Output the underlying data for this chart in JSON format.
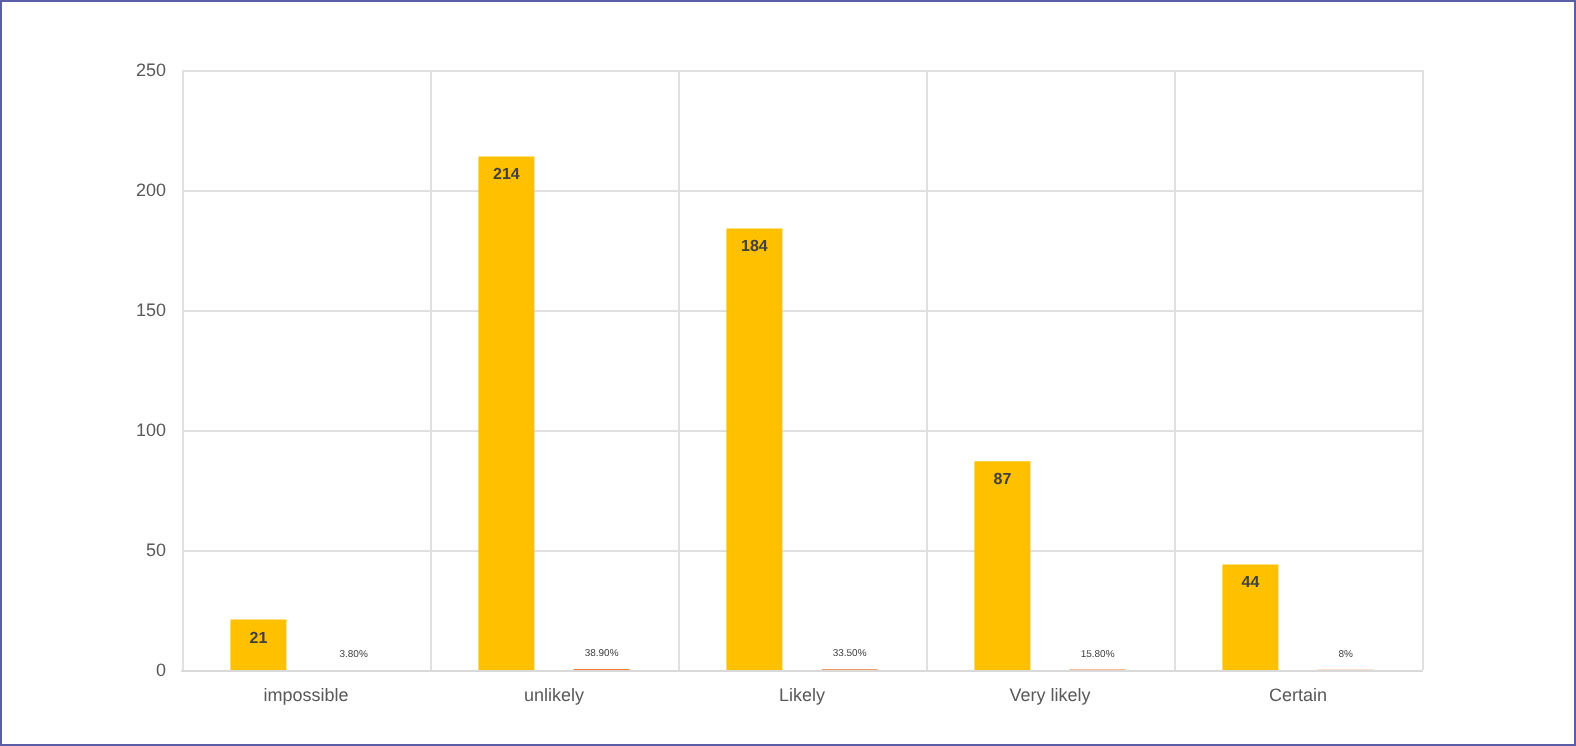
{
  "chart_data": {
    "type": "bar",
    "categories": [
      "impossible",
      "unlikely",
      "Likely",
      "Very likely",
      "Certain"
    ],
    "series": [
      {
        "color": "#ffc000",
        "values": [
          21,
          214,
          184,
          87,
          44
        ],
        "value_labels": [
          "21",
          "214",
          "184",
          "87",
          "44"
        ]
      },
      {
        "color": "#ed7d31",
        "values": [
          0.038,
          0.389,
          0.335,
          0.158,
          0.08
        ],
        "value_labels": [
          "3.80%",
          "38.90%",
          "33.50%",
          "15.80%",
          "8%"
        ]
      }
    ],
    "ylim": [
      0,
      250
    ],
    "yticks": [
      0,
      50,
      100,
      150,
      200,
      250
    ],
    "grid": true
  }
}
